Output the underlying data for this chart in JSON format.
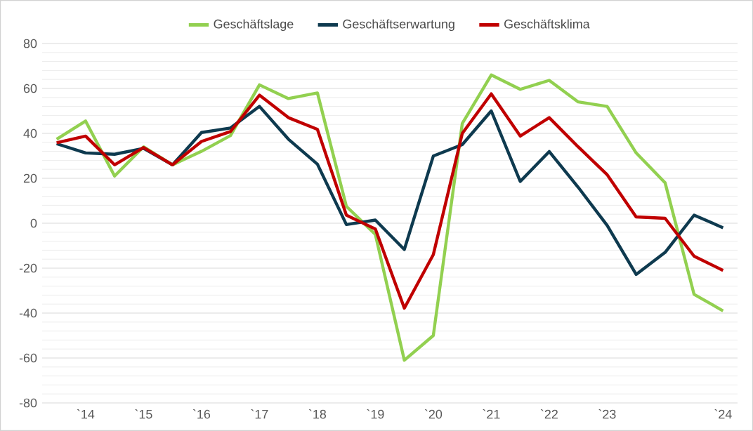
{
  "chart_data": {
    "type": "line",
    "categories": [
      null,
      "`14",
      null,
      "`15",
      null,
      "`16",
      null,
      "`17",
      null,
      "`18",
      null,
      "`19",
      null,
      "`20",
      null,
      "`21",
      null,
      "`22",
      null,
      "`23",
      null,
      null,
      null,
      "`24"
    ],
    "series": [
      {
        "name": "Geschäftslage",
        "color": "#92d050",
        "values": [
          37.4,
          45.5,
          21,
          34,
          26,
          32,
          39,
          61.6,
          55.5,
          58,
          7.5,
          -5,
          -61,
          -50,
          44.4,
          66,
          59.6,
          63.6,
          54,
          52,
          31.3,
          18,
          -31.7,
          -39
        ]
      },
      {
        "name": "Geschäftserwartung",
        "color": "#0e3a4f",
        "values": [
          35.4,
          31.3,
          30.7,
          33.3,
          26,
          40.4,
          42.4,
          52,
          37.4,
          26.3,
          -0.6,
          1.4,
          -11.7,
          29.9,
          35,
          50,
          18.6,
          31.9,
          16,
          -1,
          -22.8,
          -13,
          3.6,
          -2
        ]
      },
      {
        "name": "Geschäftsklima",
        "color": "#c00000",
        "values": [
          35.8,
          38.8,
          26,
          33.7,
          26,
          36.4,
          40.8,
          57,
          47,
          41.8,
          3.6,
          -2.6,
          -37.8,
          -14,
          40,
          57.6,
          38.8,
          47,
          34,
          21.6,
          2.8,
          2.2,
          -14.7,
          -21
        ]
      }
    ],
    "ylim": [
      -80,
      80
    ],
    "yticks": [
      -80,
      -60,
      -40,
      -20,
      0,
      20,
      40,
      60,
      80
    ],
    "grid": "y",
    "legend": "top",
    "marker": "none",
    "line_style": "solid"
  }
}
